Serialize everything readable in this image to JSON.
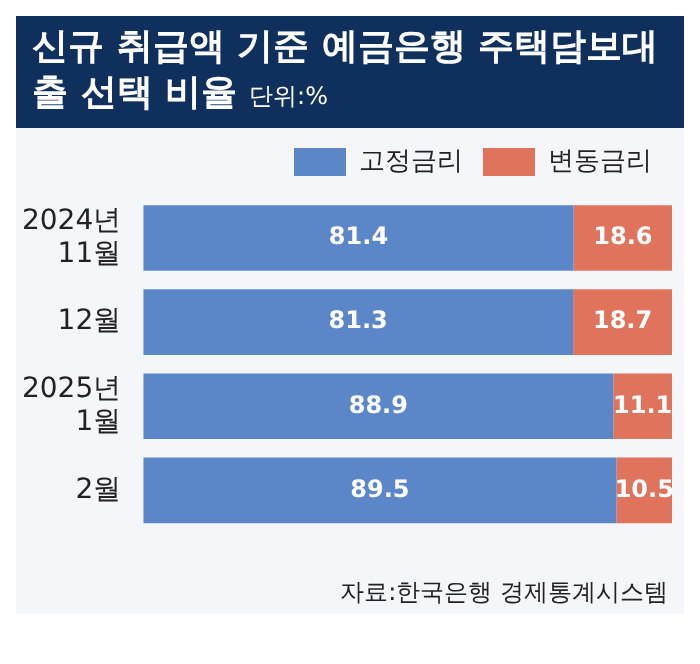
{
  "chart_data": {
    "type": "bar",
    "orientation": "horizontal",
    "stacked": true,
    "title": "신규 취급액 기준 예금은행 주택담보대출 선택 비율",
    "subtitle": "단위:%",
    "categories": [
      "2024년 11월",
      "12월",
      "2025년 1월",
      "2월"
    ],
    "series": [
      {
        "name": "고정금리",
        "color": "#5b87c9",
        "values": [
          81.4,
          81.3,
          88.9,
          89.5
        ]
      },
      {
        "name": "변동금리",
        "color": "#e0735b",
        "values": [
          18.6,
          18.7,
          11.1,
          10.5
        ]
      }
    ],
    "data_labels": true,
    "legend": "top right",
    "grid": false,
    "annotations": [
      "자료:한국은행 경제통계시스템"
    ]
  }
}
